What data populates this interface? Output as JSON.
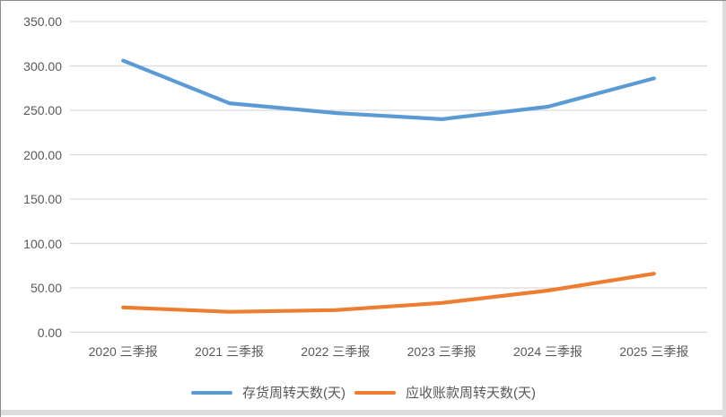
{
  "chart_data": {
    "type": "line",
    "title": "",
    "xlabel": "",
    "ylabel": "",
    "categories": [
      "2020 三季报",
      "2021 三季报",
      "2022 三季报",
      "2023 三季报",
      "2024 三季报",
      "2025 三季报"
    ],
    "series": [
      {
        "name": "存货周转天数(天)",
        "color": "#5B9BD5",
        "values": [
          306,
          258,
          247,
          240,
          254,
          286
        ]
      },
      {
        "name": "应收账款周转天数(天)",
        "color": "#ED7D31",
        "values": [
          28,
          23,
          25,
          33,
          47,
          66
        ]
      }
    ],
    "ylim": [
      0,
      350
    ],
    "y_tick_step": 50,
    "y_tick_labels": [
      "0.00",
      "50.00",
      "100.00",
      "150.00",
      "200.00",
      "250.00",
      "300.00",
      "350.00"
    ],
    "grid": true,
    "legend_position": "bottom"
  },
  "colors": {
    "axis_text": "#595959",
    "gridline": "#D9D9D9",
    "background": "#FFFFFF"
  }
}
